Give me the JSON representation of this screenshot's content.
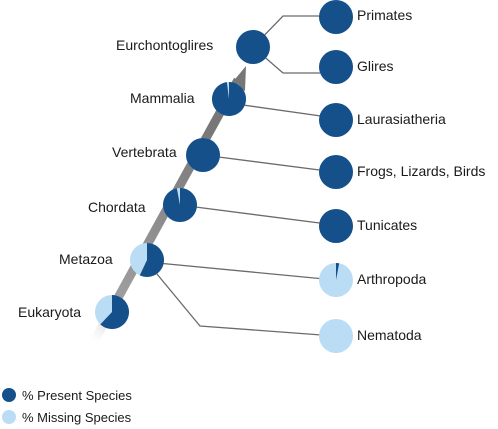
{
  "colors": {
    "present": "#15508a",
    "missing": "#badcf4",
    "connector": "#6b6b6b",
    "arrow": "#777777"
  },
  "nodes": [
    {
      "id": "eukaryota",
      "label": "Eukaryota",
      "present_fraction": 0.62
    },
    {
      "id": "metazoa",
      "label": "Metazoa",
      "present_fraction": 0.57
    },
    {
      "id": "chordata",
      "label": "Chordata",
      "present_fraction": 0.97
    },
    {
      "id": "vertebrata",
      "label": "Vertebrata",
      "present_fraction": 1.0
    },
    {
      "id": "mammalia",
      "label": "Mammalia",
      "present_fraction": 0.98
    },
    {
      "id": "euarchontoglires",
      "label": "Eurchontoglires",
      "present_fraction": 1.0
    }
  ],
  "leaves": [
    {
      "id": "primates",
      "label": "Primates",
      "present_fraction": 1.0
    },
    {
      "id": "glires",
      "label": "Glires",
      "present_fraction": 1.0
    },
    {
      "id": "laurasiatheria",
      "label": "Laurasiatheria",
      "present_fraction": 1.0
    },
    {
      "id": "frogs-lizards-birds",
      "label": "Frogs, Lizards, Birds",
      "present_fraction": 1.0
    },
    {
      "id": "tunicates",
      "label": "Tunicates",
      "present_fraction": 1.0
    },
    {
      "id": "arthropoda",
      "label": "Arthropoda",
      "present_fraction": 0.03
    },
    {
      "id": "nematoda",
      "label": "Nematoda",
      "present_fraction": 0.0
    }
  ],
  "legend": {
    "present_label": "% Present Species",
    "missing_label": "% Missing Species"
  }
}
